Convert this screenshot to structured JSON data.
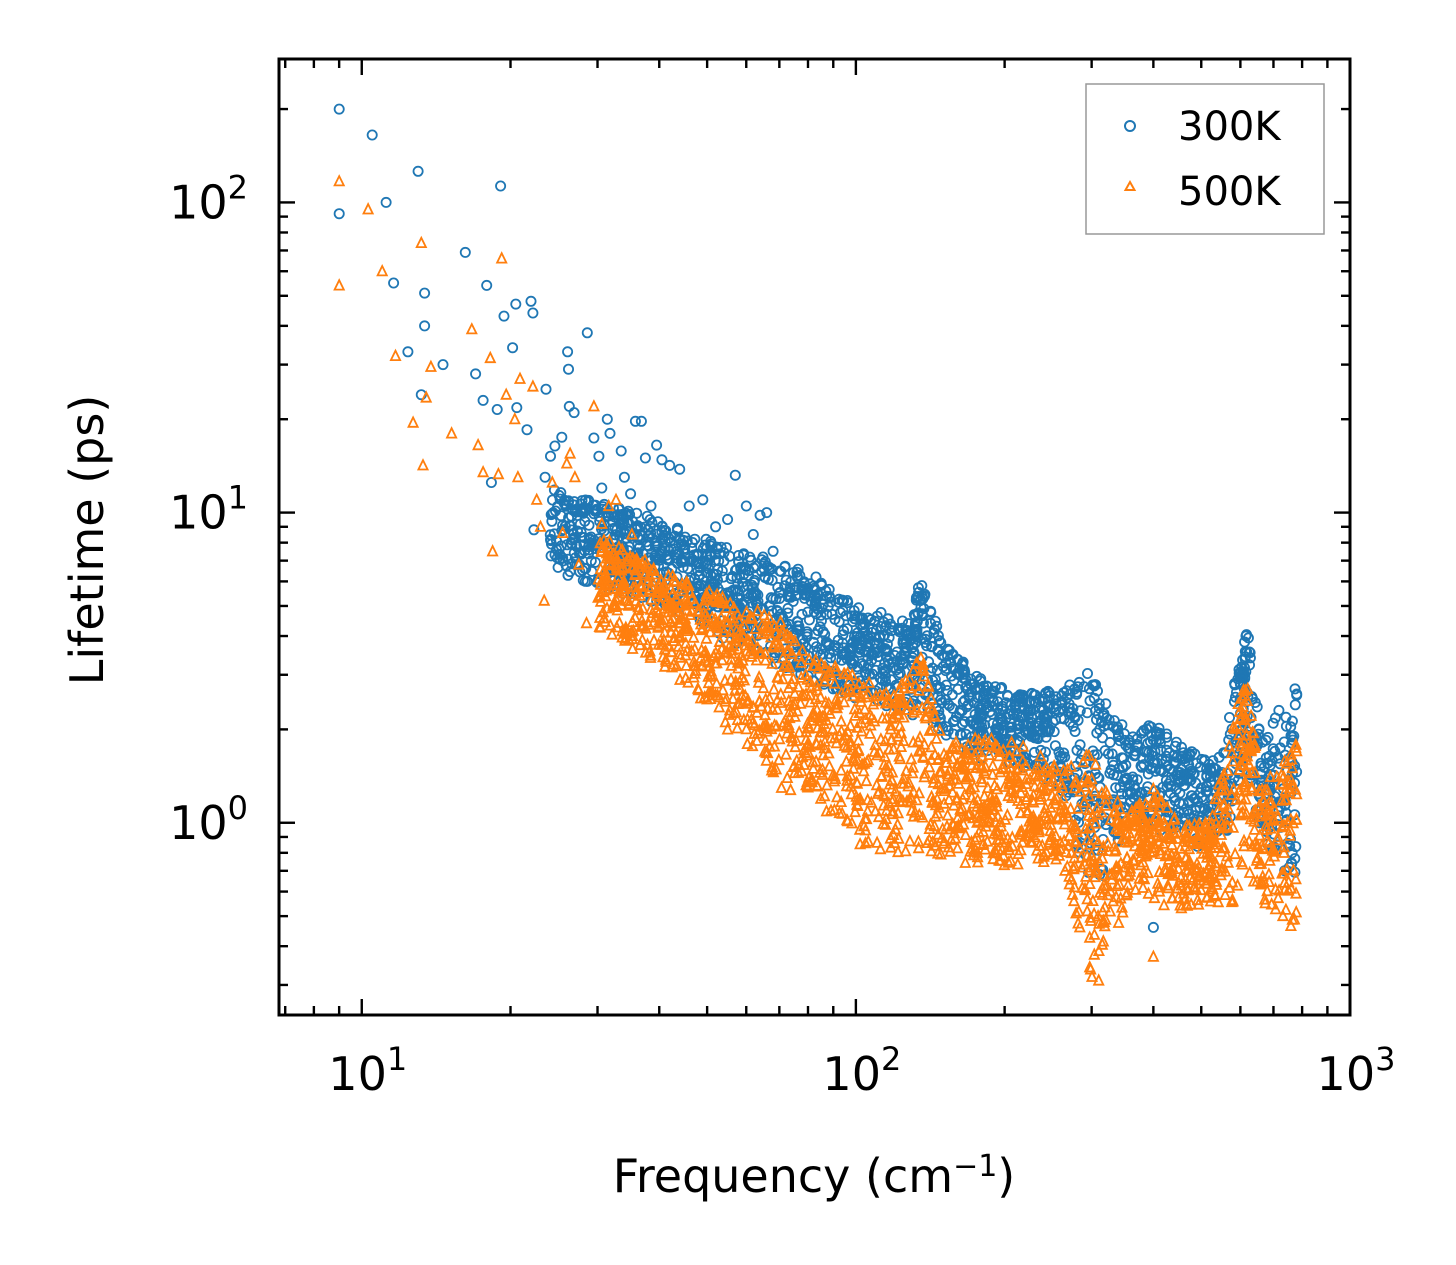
{
  "chart_data": {
    "type": "scatter",
    "xscale": "log",
    "yscale": "log",
    "xlabel": "Frequency (cm",
    "xlabel_exp": "−1",
    "xlabel_close": ")",
    "ylabel": "Lifetime (ps)",
    "xlim": [
      6.8,
      1000
    ],
    "ylim": [
      0.24,
      290
    ],
    "x_ticks": [
      {
        "base": "10",
        "exp": "1",
        "value": 10
      },
      {
        "base": "10",
        "exp": "2",
        "value": 100
      },
      {
        "base": "10",
        "exp": "3",
        "value": 1000
      }
    ],
    "y_ticks": [
      {
        "base": "10",
        "exp": "0",
        "value": 1
      },
      {
        "base": "10",
        "exp": "1",
        "value": 10
      },
      {
        "base": "10",
        "exp": "2",
        "value": 100
      }
    ],
    "legend_position": "top-right",
    "series": [
      {
        "name": "300K",
        "marker": "circle",
        "color": "#1f77b4",
        "points": [
          [
            9.0,
            200
          ],
          [
            9.0,
            92
          ],
          [
            10.5,
            165
          ],
          [
            11.2,
            100
          ],
          [
            11.6,
            55
          ],
          [
            12.4,
            33
          ],
          [
            13.0,
            126
          ],
          [
            13.2,
            24
          ],
          [
            13.4,
            40
          ],
          [
            13.4,
            51
          ],
          [
            14.6,
            30
          ],
          [
            16.2,
            69
          ],
          [
            17.0,
            28
          ],
          [
            17.6,
            23
          ],
          [
            17.9,
            54
          ],
          [
            18.3,
            12.5
          ],
          [
            18.8,
            21.5
          ],
          [
            19.1,
            113
          ],
          [
            19.4,
            43
          ],
          [
            20.2,
            34
          ],
          [
            20.5,
            47
          ],
          [
            20.6,
            21.8
          ],
          [
            21.6,
            18.5
          ],
          [
            22.0,
            48
          ],
          [
            22.2,
            44
          ],
          [
            22.3,
            8.8
          ],
          [
            23.5,
            13
          ],
          [
            23.6,
            25
          ],
          [
            24.1,
            15.2
          ],
          [
            24.6,
            16.4
          ],
          [
            25.4,
            17.5
          ],
          [
            26.1,
            33
          ],
          [
            26.2,
            29
          ],
          [
            26.3,
            22
          ],
          [
            26.9,
            21
          ],
          [
            28.6,
            38
          ],
          [
            29.5,
            17.4
          ],
          [
            30.2,
            15.2
          ],
          [
            30.6,
            12
          ],
          [
            31.4,
            20
          ],
          [
            31.8,
            18
          ],
          [
            33.5,
            15.8
          ],
          [
            34.0,
            13
          ],
          [
            35.0,
            11.5
          ],
          [
            35.8,
            19.7
          ],
          [
            36.8,
            19.7
          ],
          [
            37.5,
            15
          ],
          [
            38.5,
            10.5
          ],
          [
            39.5,
            16.5
          ],
          [
            40.5,
            14.8
          ],
          [
            42.0,
            14.2
          ],
          [
            44.0,
            13.8
          ],
          [
            46.0,
            10.5
          ],
          [
            49.0,
            11
          ],
          [
            52.0,
            9
          ],
          [
            55.0,
            9.5
          ],
          [
            57.0,
            13.2
          ],
          [
            60.0,
            10.5
          ],
          [
            62.0,
            8.5
          ],
          [
            64.0,
            9.8
          ],
          [
            66.0,
            10
          ],
          [
            68.0,
            7.5
          ]
        ],
        "bands": [
          [
            24,
            0.0,
            6.5,
            12.0
          ],
          [
            40,
            0.0,
            5.0,
            9.5
          ],
          [
            60,
            0.0,
            3.6,
            7.5
          ],
          [
            80,
            0.0,
            2.9,
            6.5
          ],
          [
            100,
            0.0,
            2.5,
            5.0
          ],
          [
            130,
            0.0,
            2.2,
            4.5
          ],
          [
            135,
            0.0,
            2.5,
            6.2
          ],
          [
            150,
            0.0,
            1.8,
            3.8
          ],
          [
            180,
            0.0,
            1.6,
            2.9
          ],
          [
            220,
            0.0,
            1.5,
            2.6
          ],
          [
            260,
            0.0,
            1.3,
            2.7
          ],
          [
            300,
            0.0,
            0.55,
            3.1
          ],
          [
            330,
            0.0,
            0.75,
            2.3
          ],
          [
            360,
            0.0,
            1.0,
            1.9
          ],
          [
            400,
            0.0,
            0.95,
            2.1
          ],
          [
            450,
            0.0,
            0.9,
            1.8
          ],
          [
            520,
            0.0,
            0.8,
            1.6
          ],
          [
            560,
            0.0,
            0.9,
            1.8
          ],
          [
            600,
            0.0,
            1.4,
            3.8
          ],
          [
            620,
            0.0,
            1.5,
            4.3
          ],
          [
            660,
            0.0,
            0.9,
            1.9
          ],
          [
            780,
            0.0,
            0.6,
            2.8
          ]
        ],
        "outliers": [
          [
            400,
            0.46
          ],
          [
            780,
            2.6
          ],
          [
            775,
            2.4
          ]
        ]
      },
      {
        "name": "500K",
        "marker": "triangle",
        "color": "#ff7f0e",
        "points": [
          [
            9.0,
            117
          ],
          [
            9.0,
            54
          ],
          [
            10.3,
            95
          ],
          [
            11.0,
            60
          ],
          [
            11.7,
            32
          ],
          [
            12.7,
            19.5
          ],
          [
            13.2,
            74
          ],
          [
            13.3,
            14.2
          ],
          [
            13.5,
            23.5
          ],
          [
            13.8,
            29.5
          ],
          [
            15.2,
            18
          ],
          [
            16.7,
            39
          ],
          [
            17.2,
            16.5
          ],
          [
            17.6,
            13.5
          ],
          [
            18.2,
            31.5
          ],
          [
            18.4,
            7.5
          ],
          [
            18.9,
            13.3
          ],
          [
            19.2,
            66
          ],
          [
            19.6,
            24
          ],
          [
            20.4,
            20
          ],
          [
            20.7,
            13
          ],
          [
            20.9,
            27
          ],
          [
            22.2,
            25.5
          ],
          [
            22.6,
            11
          ],
          [
            23.0,
            9.0
          ],
          [
            23.4,
            5.2
          ],
          [
            24.3,
            12.5
          ],
          [
            25.5,
            8.6
          ],
          [
            26.0,
            14.4
          ],
          [
            26.4,
            15.5
          ],
          [
            27.0,
            13
          ],
          [
            27.5,
            6.8
          ],
          [
            28.5,
            4.4
          ],
          [
            29.5,
            22
          ],
          [
            30.6,
            9.2
          ],
          [
            31.6,
            10.5
          ],
          [
            32.0,
            7.2
          ],
          [
            32.7,
            11
          ],
          [
            34.0,
            5.5
          ],
          [
            35.2,
            8.5
          ],
          [
            37.0,
            6.8
          ],
          [
            38.5,
            4.6
          ],
          [
            40.0,
            5.8
          ],
          [
            44.0,
            4.0
          ],
          [
            47.0,
            3.2
          ],
          [
            50.0,
            2.5
          ],
          [
            55.0,
            2.0
          ]
        ],
        "bands": [
          [
            30,
            0.0,
            4.3,
            8.5
          ],
          [
            45,
            0.0,
            2.8,
            6.0
          ],
          [
            60,
            0.0,
            1.8,
            5.0
          ],
          [
            70,
            0.0,
            1.3,
            4.5
          ],
          [
            80,
            0.0,
            1.2,
            3.5
          ],
          [
            100,
            0.0,
            0.85,
            3.0
          ],
          [
            120,
            0.0,
            0.78,
            2.6
          ],
          [
            135,
            0.0,
            0.8,
            3.6
          ],
          [
            150,
            0.0,
            0.75,
            1.8
          ],
          [
            180,
            0.0,
            0.72,
            1.9
          ],
          [
            220,
            0.0,
            0.72,
            1.8
          ],
          [
            260,
            0.0,
            0.75,
            1.5
          ],
          [
            300,
            0.0,
            0.3,
            1.7
          ],
          [
            330,
            0.0,
            0.4,
            1.2
          ],
          [
            360,
            0.0,
            0.6,
            1.1
          ],
          [
            400,
            0.0,
            0.55,
            1.3
          ],
          [
            450,
            0.0,
            0.5,
            1.0
          ],
          [
            520,
            0.0,
            0.55,
            1.0
          ],
          [
            600,
            0.0,
            0.55,
            2.7
          ],
          [
            620,
            0.0,
            0.7,
            2.8
          ],
          [
            660,
            0.0,
            0.55,
            1.3
          ],
          [
            780,
            0.0,
            0.45,
            1.8
          ]
        ],
        "outliers": [
          [
            400,
            0.37
          ],
          [
            310,
            0.31
          ],
          [
            780,
            1.7
          ]
        ]
      }
    ]
  }
}
